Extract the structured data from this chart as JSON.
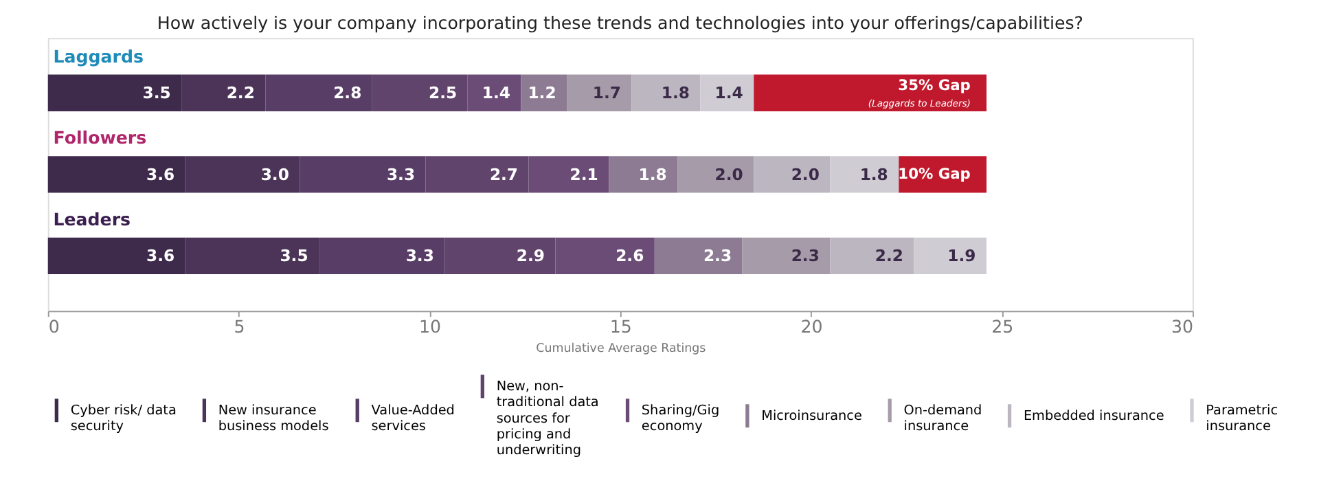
{
  "chart_data": {
    "type": "bar",
    "orientation": "horizontal",
    "stacked": true,
    "title": "How actively is your company incorporating these trends and technologies into your offerings/capabilities?",
    "xlabel": "Cumulative Average Ratings",
    "categories": [
      "Laggards",
      "Followers",
      "Leaders"
    ],
    "series": [
      {
        "name": "Cyber risk/ data security",
        "color": "#3e2a4b",
        "values": [
          3.5,
          3.6,
          3.6
        ],
        "value_labels": [
          "3.5",
          "3.6",
          "3.6"
        ]
      },
      {
        "name": "New insurance business models",
        "color": "#4b3458",
        "values": [
          2.2,
          3.0,
          3.5
        ],
        "value_labels": [
          "2.2",
          "3.0",
          "3.5"
        ]
      },
      {
        "name": "Value-Added services",
        "color": "#583d66",
        "values": [
          2.8,
          3.3,
          3.3
        ],
        "value_labels": [
          "2.8",
          "3.3",
          "3.3"
        ]
      },
      {
        "name": "New, non-traditional data sources for pricing and underwriting",
        "color": "#60446c",
        "values": [
          2.5,
          2.7,
          2.9
        ],
        "value_labels": [
          "2.5",
          "2.7",
          "2.9"
        ]
      },
      {
        "name": "Sharing/Gig economy",
        "color": "#6a4c77",
        "values": [
          1.4,
          2.1,
          2.6
        ],
        "value_labels": [
          "1.4",
          "2.1",
          "2.6"
        ]
      },
      {
        "name": "Microinsurance",
        "color": "#8c7b93",
        "values": [
          1.2,
          1.8,
          2.3
        ],
        "value_labels": [
          "1.2",
          "1.8",
          "2.3"
        ]
      },
      {
        "name": "On-demand insurance",
        "color": "#a69ca9",
        "values": [
          1.7,
          2.0,
          2.3
        ],
        "value_labels": [
          "1.7",
          "2.0",
          "2.3"
        ]
      },
      {
        "name": "Embedded insurance",
        "color": "#bcb6c0",
        "values": [
          1.8,
          2.0,
          2.2
        ],
        "value_labels": [
          "1.8",
          "2.0",
          "2.2"
        ]
      },
      {
        "name": "Parametric insurance",
        "color": "#d0ccd4",
        "values": [
          1.4,
          1.8,
          1.9
        ],
        "value_labels": [
          "1.4",
          "1.8",
          "1.9"
        ]
      },
      {
        "color": "#c0192e",
        "values": [
          6.1,
          2.3,
          null
        ]
      }
    ],
    "annotations": [
      "35% Gap",
      "(Laggards to Leaders)",
      "10% Gap"
    ],
    "xlim": [
      0,
      30
    ],
    "xticks": [
      0,
      5,
      10,
      15,
      20,
      25,
      30
    ],
    "tick_labels": "x",
    "grid": false,
    "legend": "bottom"
  }
}
